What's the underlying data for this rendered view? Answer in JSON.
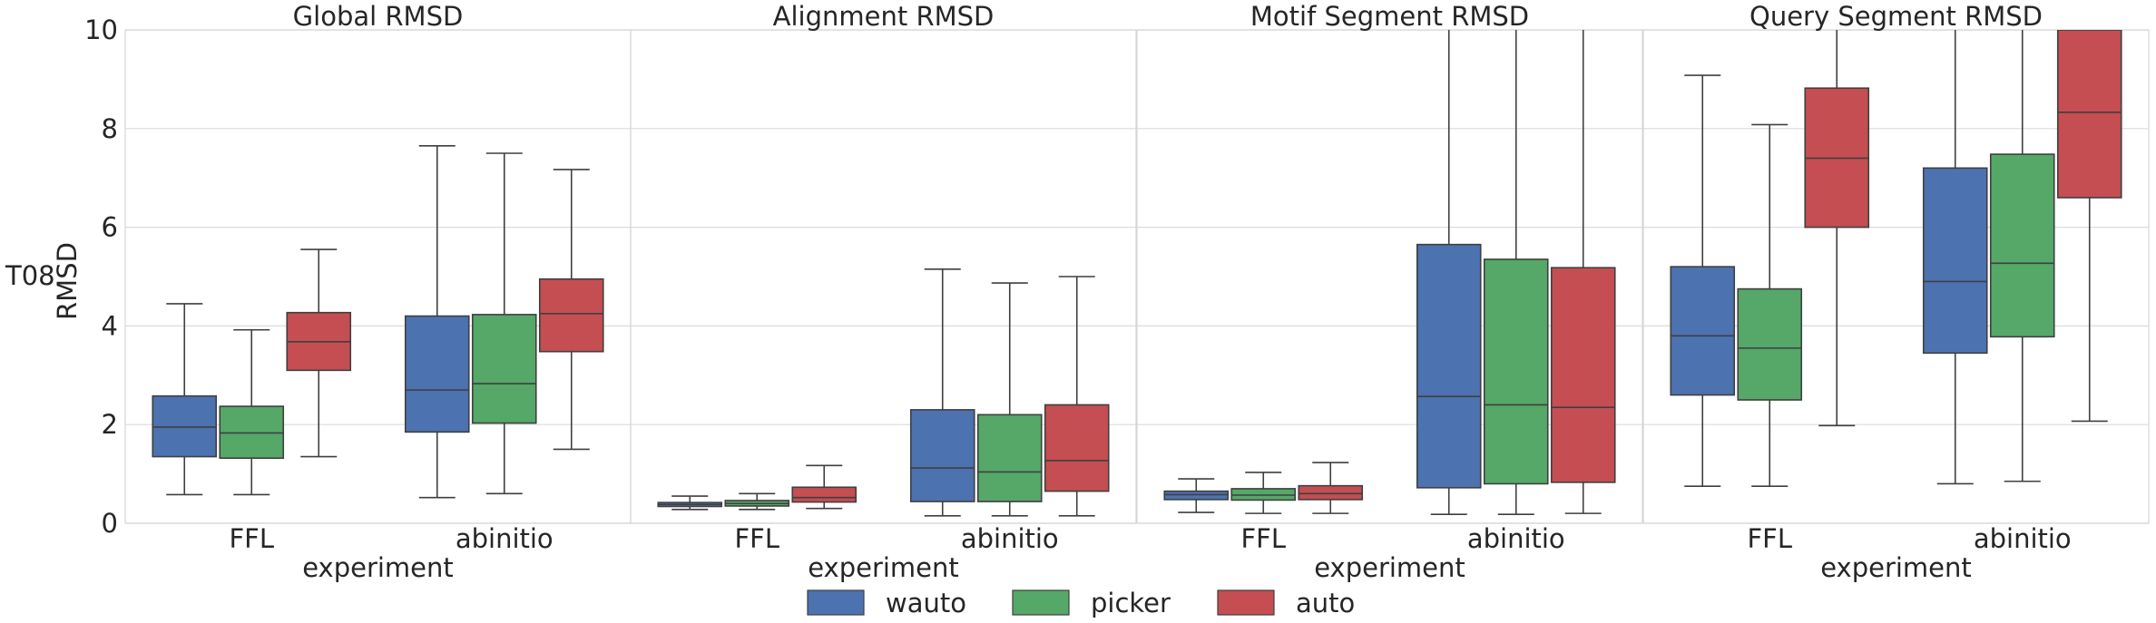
{
  "row_label": "T08",
  "legend": {
    "position": "bottom-center",
    "items": [
      {
        "label": "wauto",
        "color": "#4C72B0"
      },
      {
        "label": "picker",
        "color": "#55A868"
      },
      {
        "label": "auto",
        "color": "#C44E52"
      }
    ]
  },
  "chart_data": {
    "type": "box",
    "ylabel": "RMSD",
    "xlabel": "experiment",
    "ylim": [
      0,
      10
    ],
    "yticks": [
      0,
      2,
      4,
      6,
      8,
      10
    ],
    "grid": true,
    "categories": [
      "FFL",
      "abinitio"
    ],
    "series_names": [
      "wauto",
      "picker",
      "auto"
    ],
    "series_colors": [
      "#4C72B0",
      "#55A868",
      "#C44E52"
    ],
    "panels": [
      {
        "title": "Global RMSD",
        "boxes": [
          [
            {
              "whislo": 0.58,
              "q1": 1.35,
              "med": 1.95,
              "q3": 2.58,
              "whishi": 4.45
            },
            {
              "whislo": 0.58,
              "q1": 1.32,
              "med": 1.83,
              "q3": 2.37,
              "whishi": 3.92
            },
            {
              "whislo": 1.35,
              "q1": 3.1,
              "med": 3.68,
              "q3": 4.27,
              "whishi": 5.55
            }
          ],
          [
            {
              "whislo": 0.52,
              "q1": 1.85,
              "med": 2.7,
              "q3": 4.2,
              "whishi": 7.65
            },
            {
              "whislo": 0.6,
              "q1": 2.03,
              "med": 2.83,
              "q3": 4.23,
              "whishi": 7.5
            },
            {
              "whislo": 1.5,
              "q1": 3.48,
              "med": 4.25,
              "q3": 4.95,
              "whishi": 7.17
            }
          ]
        ]
      },
      {
        "title": "Alignment RMSD",
        "boxes": [
          [
            {
              "whislo": 0.28,
              "q1": 0.34,
              "med": 0.38,
              "q3": 0.42,
              "whishi": 0.55
            },
            {
              "whislo": 0.28,
              "q1": 0.35,
              "med": 0.4,
              "q3": 0.46,
              "whishi": 0.6
            },
            {
              "whislo": 0.3,
              "q1": 0.43,
              "med": 0.52,
              "q3": 0.73,
              "whishi": 1.17
            }
          ],
          [
            {
              "whislo": 0.15,
              "q1": 0.44,
              "med": 1.12,
              "q3": 2.3,
              "whishi": 5.15
            },
            {
              "whislo": 0.15,
              "q1": 0.44,
              "med": 1.04,
              "q3": 2.2,
              "whishi": 4.87
            },
            {
              "whislo": 0.15,
              "q1": 0.65,
              "med": 1.27,
              "q3": 2.4,
              "whishi": 5.0
            }
          ]
        ]
      },
      {
        "title": "Motif Segment RMSD",
        "boxes": [
          [
            {
              "whislo": 0.22,
              "q1": 0.48,
              "med": 0.58,
              "q3": 0.65,
              "whishi": 0.9
            },
            {
              "whislo": 0.2,
              "q1": 0.47,
              "med": 0.57,
              "q3": 0.7,
              "whishi": 1.03
            },
            {
              "whislo": 0.2,
              "q1": 0.48,
              "med": 0.6,
              "q3": 0.76,
              "whishi": 1.23
            }
          ],
          [
            {
              "whislo": 0.18,
              "q1": 0.72,
              "med": 2.57,
              "q3": 5.65,
              "whishi": 10.5
            },
            {
              "whislo": 0.18,
              "q1": 0.8,
              "med": 2.4,
              "q3": 5.35,
              "whishi": 10.5
            },
            {
              "whislo": 0.2,
              "q1": 0.83,
              "med": 2.35,
              "q3": 5.18,
              "whishi": 10.5
            }
          ]
        ]
      },
      {
        "title": "Query Segment RMSD",
        "boxes": [
          [
            {
              "whislo": 0.75,
              "q1": 2.6,
              "med": 3.8,
              "q3": 5.2,
              "whishi": 9.08
            },
            {
              "whislo": 0.75,
              "q1": 2.5,
              "med": 3.55,
              "q3": 4.75,
              "whishi": 8.08
            },
            {
              "whislo": 1.98,
              "q1": 6.0,
              "med": 7.4,
              "q3": 8.82,
              "whishi": 10.5
            }
          ],
          [
            {
              "whislo": 0.8,
              "q1": 3.45,
              "med": 4.9,
              "q3": 7.2,
              "whishi": 10.5
            },
            {
              "whislo": 0.85,
              "q1": 3.78,
              "med": 5.27,
              "q3": 7.48,
              "whishi": 10.5
            },
            {
              "whislo": 2.07,
              "q1": 6.6,
              "med": 8.33,
              "q3": 10.5,
              "whishi": 10.5
            }
          ]
        ]
      }
    ]
  }
}
